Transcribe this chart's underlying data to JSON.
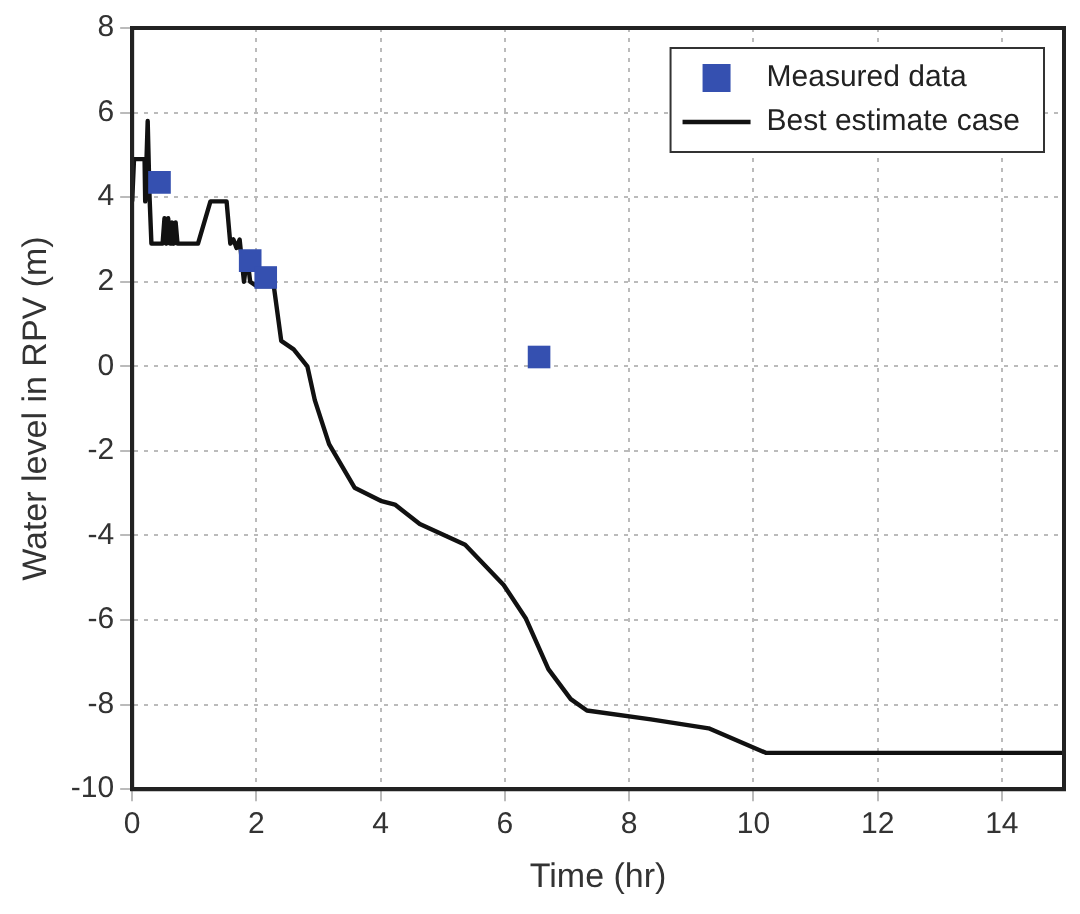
{
  "chart_data": {
    "type": "line",
    "xlabel": "Time (hr)",
    "ylabel": "Water level in RPV (m)",
    "xlim": [
      0,
      15
    ],
    "xticks": [
      0,
      2,
      4,
      6,
      8,
      10,
      12,
      14
    ],
    "ylim": [
      -10,
      8
    ],
    "yticks": [
      -10,
      -8,
      -6,
      -4,
      -2,
      0,
      2,
      4,
      6,
      8
    ],
    "grid": true,
    "legend": "top right",
    "series": [
      {
        "name": "Measured data",
        "type": "scatter",
        "marker": "square",
        "color": "#3550b0",
        "x": [
          0.44,
          1.9,
          2.15,
          6.55
        ],
        "values": [
          4.35,
          2.5,
          2.1,
          0.22
        ]
      },
      {
        "name": "Best estimate case",
        "type": "line",
        "marker": "none",
        "color": "#111111",
        "x": [
          0,
          0.03,
          0.2,
          0.21,
          0.25,
          0.28,
          0.31,
          0.49,
          0.52,
          0.55,
          0.58,
          0.61,
          0.64,
          0.67,
          0.7,
          0.73,
          1.06,
          1.26,
          1.52,
          1.58,
          1.63,
          1.68,
          1.73,
          1.8,
          1.85,
          1.9,
          2.0,
          2.28,
          2.4,
          2.6,
          2.82,
          2.94,
          3.17,
          3.58,
          4.0,
          4.23,
          4.63,
          5.36,
          5.98,
          6.34,
          6.7,
          7.06,
          7.32,
          8.35,
          9.28,
          10.2,
          15
        ],
        "values": [
          3.9,
          4.9,
          4.9,
          3.9,
          5.8,
          4.0,
          2.9,
          2.9,
          3.5,
          2.9,
          3.5,
          2.9,
          3.4,
          2.9,
          3.4,
          2.9,
          2.9,
          3.9,
          3.9,
          2.9,
          3.0,
          2.8,
          3.0,
          2.0,
          2.6,
          2.0,
          1.9,
          1.9,
          0.6,
          0.4,
          0.0,
          -0.8,
          -1.84,
          -2.87,
          -3.18,
          -3.27,
          -3.73,
          -4.22,
          -5.17,
          -5.97,
          -7.16,
          -7.87,
          -8.14,
          -8.35,
          -8.56,
          -9.14,
          -9.14
        ]
      }
    ]
  }
}
